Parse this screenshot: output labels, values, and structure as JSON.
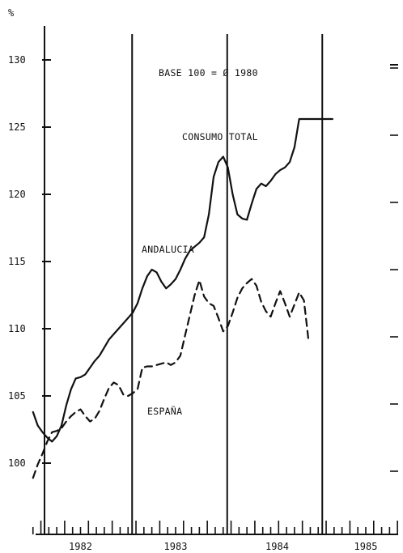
{
  "chart_data": {
    "type": "line",
    "unit_label": "%",
    "annotations": {
      "base": "BASE 100 = Ø 1980",
      "title": "CONSUMO TOTAL"
    },
    "y_ticks": [
      "100",
      "105",
      "110",
      "115",
      "120",
      "125",
      "130"
    ],
    "ylim": [
      95,
      133
    ],
    "x_ticks": [
      "1982",
      "1983",
      "1984",
      "1985"
    ],
    "xlim": [
      1981.5,
      1985.5
    ],
    "year_dividers": [
      1982.5,
      1983.5,
      1984.5
    ],
    "grid": false,
    "series": [
      {
        "name": "ANDALUCIA",
        "style": "solid",
        "x": [
          1981.5,
          1981.55,
          1981.6,
          1981.65,
          1981.7,
          1981.75,
          1981.8,
          1981.85,
          1981.9,
          1981.95,
          1982.0,
          1982.05,
          1982.1,
          1982.15,
          1982.2,
          1982.25,
          1982.3,
          1982.35,
          1982.4,
          1982.45,
          1982.5,
          1982.55,
          1982.6,
          1982.65,
          1982.7,
          1982.75,
          1982.8,
          1982.85,
          1982.9,
          1982.95,
          1983.0,
          1983.05,
          1983.1,
          1983.15,
          1983.2,
          1983.25,
          1983.3,
          1983.35,
          1983.4,
          1983.45,
          1983.5,
          1983.55,
          1983.6,
          1983.65,
          1983.7,
          1983.75,
          1983.8,
          1983.85,
          1983.9,
          1983.95,
          1984.0,
          1984.05,
          1984.1,
          1984.15,
          1984.2,
          1984.25,
          1984.3,
          1984.35,
          1984.4,
          1984.45,
          1984.5,
          1984.55,
          1984.6,
          1984.65
        ],
        "values": [
          103.8,
          102.8,
          102.3,
          101.9,
          101.6,
          102.0,
          102.8,
          104.3,
          105.5,
          106.3,
          106.4,
          106.6,
          107.1,
          107.6,
          108.0,
          108.6,
          109.2,
          109.6,
          110.0,
          110.4,
          110.8,
          111.2,
          111.9,
          113.0,
          113.9,
          114.4,
          114.2,
          113.5,
          113.0,
          113.3,
          113.7,
          114.4,
          115.2,
          115.8,
          116.1,
          116.4,
          116.8,
          118.5,
          121.3,
          122.4,
          122.8,
          122.0,
          120.0,
          118.5,
          118.2,
          118.1,
          119.3,
          120.4,
          120.8,
          120.6,
          121.0,
          121.5,
          121.8,
          122.0,
          122.4,
          123.5,
          125.6,
          125.6,
          125.6,
          125.6,
          125.6,
          125.6,
          125.6,
          125.6
        ]
      },
      {
        "name": "ESPAÑA",
        "style": "dashed",
        "x": [
          1981.5,
          1981.55,
          1981.6,
          1981.65,
          1981.7,
          1981.75,
          1981.8,
          1981.85,
          1981.9,
          1981.95,
          1982.0,
          1982.05,
          1982.1,
          1982.15,
          1982.2,
          1982.25,
          1982.3,
          1982.35,
          1982.4,
          1982.45,
          1982.5,
          1982.55,
          1982.6,
          1982.65,
          1982.7,
          1982.75,
          1982.8,
          1982.85,
          1982.9,
          1982.95,
          1983.0,
          1983.05,
          1983.1,
          1983.15,
          1983.2,
          1983.25,
          1983.3,
          1983.35,
          1983.4,
          1983.45,
          1983.5,
          1983.55,
          1983.6,
          1983.65,
          1983.7,
          1983.75,
          1983.8,
          1983.85,
          1983.9,
          1983.95,
          1984.0,
          1984.05,
          1984.1,
          1984.15,
          1984.2,
          1984.25,
          1984.3,
          1984.35,
          1984.4
        ],
        "values": [
          98.9,
          99.9,
          100.7,
          101.6,
          102.3,
          102.4,
          102.6,
          103.1,
          103.5,
          103.8,
          104.0,
          103.5,
          103.1,
          103.3,
          103.9,
          104.8,
          105.6,
          106.0,
          105.8,
          105.1,
          105.0,
          105.2,
          105.5,
          107.1,
          107.2,
          107.2,
          107.3,
          107.4,
          107.5,
          107.3,
          107.5,
          108.0,
          109.5,
          111.0,
          112.5,
          113.6,
          112.4,
          111.9,
          111.7,
          110.8,
          109.8,
          110.2,
          111.2,
          112.3,
          113.0,
          113.4,
          113.7,
          113.2,
          112.0,
          111.3,
          110.9,
          111.9,
          112.8,
          111.9,
          110.9,
          111.8,
          112.7,
          112.1,
          109.0
        ]
      }
    ]
  }
}
